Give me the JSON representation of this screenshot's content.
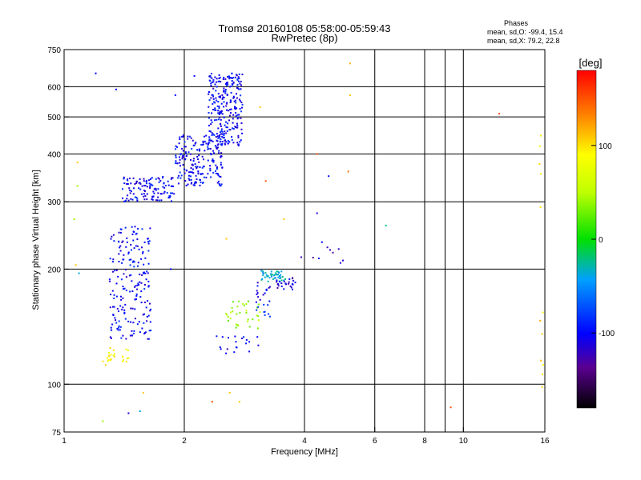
{
  "header": {
    "title_line1": "Tromsø 20160108 05:58:00-05:59:43",
    "title_line2": "RwPretec (8p)"
  },
  "stats": {
    "heading": "Phases",
    "o_mode": "mean, sd,O: -99.4, 15.4",
    "x_mode": "mean, sd,X: 79.2, 22.8"
  },
  "colorbar": {
    "label": "[deg]",
    "ticks": [
      "100",
      "0",
      "-100"
    ],
    "range": [
      -180,
      180
    ]
  },
  "chart_data": {
    "type": "scatter",
    "title": "Tromsø 20160108 05:58:00-05:59:43",
    "subtitle": "RwPretec (8p)",
    "xlabel": "Frequency [MHz]",
    "ylabel": "Stationary phase Virtual Height [km]",
    "xscale": "log",
    "yscale": "log",
    "xlim": [
      1,
      16
    ],
    "ylim": [
      75,
      750
    ],
    "x_ticks": [
      1,
      2,
      4,
      6,
      8,
      10,
      16
    ],
    "x_tick_labels": [
      "1",
      "2",
      "4",
      "6",
      "8",
      "10",
      "16"
    ],
    "y_ticks": [
      75,
      100,
      200,
      300,
      400,
      500,
      600,
      750
    ],
    "y_tick_labels": [
      "75",
      "100",
      "200",
      "300",
      "400",
      "500",
      "600",
      "750"
    ],
    "x_gridlines": [
      2,
      4,
      6,
      8,
      9,
      10
    ],
    "y_gridlines": [
      100,
      200,
      300,
      400,
      500,
      600
    ],
    "color_by": "phase [deg]",
    "clusters": [
      {
        "x_range": [
          1.4,
          1.9
        ],
        "y_range": [
          300,
          350
        ],
        "phase": -100,
        "count": 120
      },
      {
        "x_range": [
          1.9,
          2.5
        ],
        "y_range": [
          330,
          450
        ],
        "phase": -100,
        "count": 200
      },
      {
        "x_range": [
          2.3,
          2.8
        ],
        "y_range": [
          420,
          650
        ],
        "phase": -100,
        "count": 260
      },
      {
        "x_range": [
          1.3,
          1.65
        ],
        "y_range": [
          130,
          260
        ],
        "phase": -100,
        "count": 200
      },
      {
        "x_range": [
          1.25,
          1.45
        ],
        "y_range": [
          112,
          125
        ],
        "phase": 90,
        "count": 25
      },
      {
        "x_range": [
          2.5,
          3.1
        ],
        "y_range": [
          140,
          165
        ],
        "phase": 40,
        "count": 35
      },
      {
        "x_range": [
          3.1,
          3.6
        ],
        "y_range": [
          185,
          200
        ],
        "phase": -40,
        "count": 45
      },
      {
        "x_range": [
          3.4,
          3.8
        ],
        "y_range": [
          175,
          190
        ],
        "phase": -110,
        "count": 25
      },
      {
        "x_range": [
          3.0,
          3.3
        ],
        "y_range": [
          150,
          185
        ],
        "phase": -100,
        "count": 25
      },
      {
        "x_range": [
          2.4,
          3.1
        ],
        "y_range": [
          120,
          135
        ],
        "phase": -110,
        "count": 20
      },
      {
        "x_range": [
          3.9,
          5.1
        ],
        "y_range": [
          205,
          240
        ],
        "phase": -110,
        "count": 10
      },
      {
        "x_range": [
          15.5,
          15.9
        ],
        "y_range": [
          90,
          480
        ],
        "phase": 110,
        "count": 12
      }
    ],
    "points": [
      {
        "x": 1.2,
        "y": 650,
        "phase": -100
      },
      {
        "x": 1.35,
        "y": 590,
        "phase": -100
      },
      {
        "x": 1.9,
        "y": 570,
        "phase": -100
      },
      {
        "x": 2.12,
        "y": 640,
        "phase": -100
      },
      {
        "x": 3.1,
        "y": 530,
        "phase": 110
      },
      {
        "x": 5.2,
        "y": 690,
        "phase": 120
      },
      {
        "x": 5.2,
        "y": 570,
        "phase": 110
      },
      {
        "x": 4.3,
        "y": 400,
        "phase": 150
      },
      {
        "x": 4.6,
        "y": 350,
        "phase": -100
      },
      {
        "x": 5.15,
        "y": 360,
        "phase": 140
      },
      {
        "x": 6.4,
        "y": 260,
        "phase": -20
      },
      {
        "x": 12.3,
        "y": 510,
        "phase": 150
      },
      {
        "x": 9.3,
        "y": 87,
        "phase": 150
      },
      {
        "x": 1.08,
        "y": 380,
        "phase": 110
      },
      {
        "x": 1.08,
        "y": 330,
        "phase": 40
      },
      {
        "x": 1.06,
        "y": 270,
        "phase": 40
      },
      {
        "x": 1.07,
        "y": 205,
        "phase": 110
      },
      {
        "x": 1.09,
        "y": 195,
        "phase": -40
      },
      {
        "x": 1.25,
        "y": 80,
        "phase": 40
      },
      {
        "x": 1.45,
        "y": 84,
        "phase": -110
      },
      {
        "x": 1.55,
        "y": 85,
        "phase": -40
      },
      {
        "x": 1.58,
        "y": 95,
        "phase": 110
      },
      {
        "x": 2.35,
        "y": 90,
        "phase": 150
      },
      {
        "x": 2.6,
        "y": 95,
        "phase": 110
      },
      {
        "x": 2.75,
        "y": 90,
        "phase": 110
      },
      {
        "x": 3.2,
        "y": 340,
        "phase": 150
      },
      {
        "x": 3.55,
        "y": 270,
        "phase": 110
      },
      {
        "x": 4.3,
        "y": 280,
        "phase": -110
      },
      {
        "x": 2.55,
        "y": 240,
        "phase": 110
      },
      {
        "x": 1.85,
        "y": 200,
        "phase": -100
      }
    ]
  }
}
